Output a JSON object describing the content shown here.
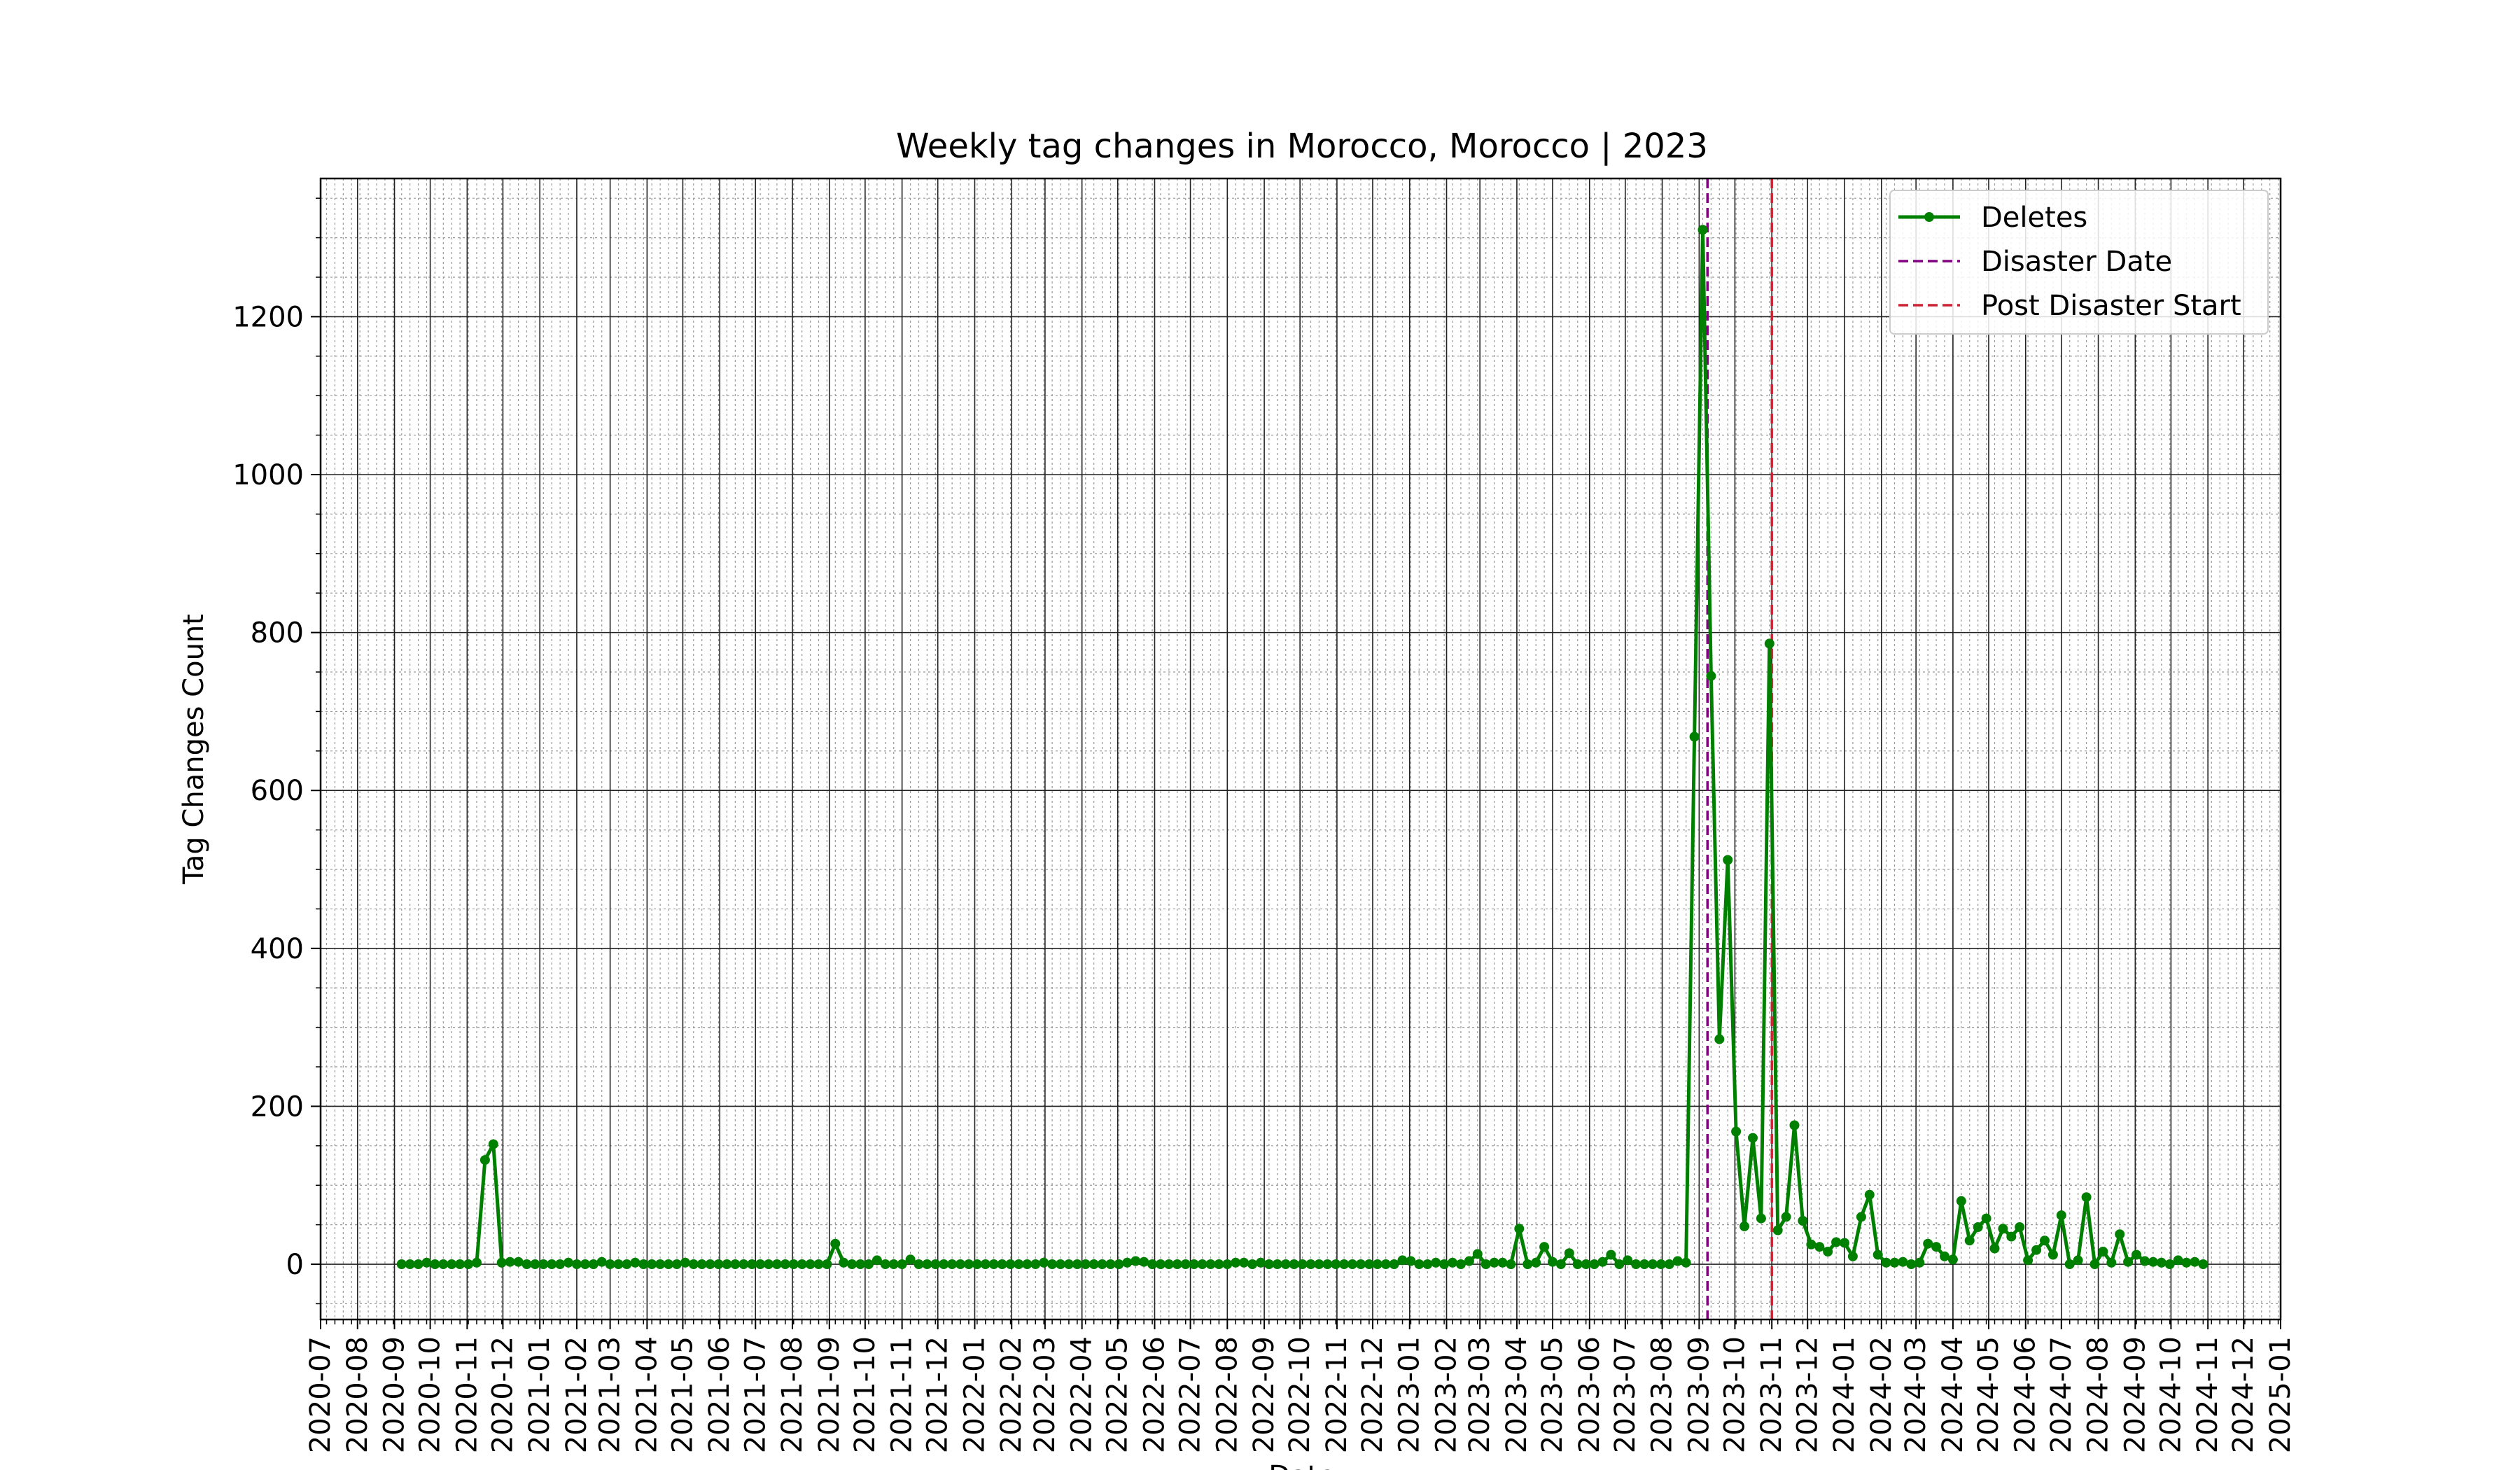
{
  "chart_data": {
    "type": "line",
    "title": "Weekly tag changes in Morocco, Morocco | 2023",
    "xlabel": "Date",
    "ylabel": "Tag Changes Count",
    "xlim": [
      "2020-07-01",
      "2025-01-01"
    ],
    "ylim": [
      -70,
      1375
    ],
    "yticks": [
      0,
      200,
      400,
      600,
      800,
      1000,
      1200
    ],
    "xticks": [
      "2020-07",
      "2020-08",
      "2020-09",
      "2020-10",
      "2020-11",
      "2020-12",
      "2021-01",
      "2021-02",
      "2021-03",
      "2021-04",
      "2021-05",
      "2021-06",
      "2021-07",
      "2021-08",
      "2021-09",
      "2021-10",
      "2021-11",
      "2021-12",
      "2022-01",
      "2022-02",
      "2022-03",
      "2022-04",
      "2022-05",
      "2022-06",
      "2022-07",
      "2022-08",
      "2022-09",
      "2022-10",
      "2022-11",
      "2022-12",
      "2023-01",
      "2023-02",
      "2023-03",
      "2023-04",
      "2023-05",
      "2023-06",
      "2023-07",
      "2023-08",
      "2023-09",
      "2023-10",
      "2023-11",
      "2023-12",
      "2024-01",
      "2024-02",
      "2024-03",
      "2024-04",
      "2024-05",
      "2024-06",
      "2024-07",
      "2024-08",
      "2024-09",
      "2024-10",
      "2024-11",
      "2024-12",
      "2025-01"
    ],
    "grid": true,
    "legend_position": "top-right",
    "series": [
      {
        "name": "Deletes",
        "color": "#008000",
        "marker": "circle",
        "points": [
          [
            "2020-09-07",
            0
          ],
          [
            "2020-09-14",
            0
          ],
          [
            "2020-09-21",
            0
          ],
          [
            "2020-09-28",
            2
          ],
          [
            "2020-10-05",
            0
          ],
          [
            "2020-10-12",
            0
          ],
          [
            "2020-10-19",
            0
          ],
          [
            "2020-10-26",
            0
          ],
          [
            "2020-11-02",
            0
          ],
          [
            "2020-11-09",
            2
          ],
          [
            "2020-11-16",
            132
          ],
          [
            "2020-11-23",
            152
          ],
          [
            "2020-11-30",
            2
          ],
          [
            "2020-12-07",
            3
          ],
          [
            "2020-12-14",
            3
          ],
          [
            "2020-12-21",
            0
          ],
          [
            "2020-12-28",
            0
          ],
          [
            "2021-01-04",
            0
          ],
          [
            "2021-01-11",
            0
          ],
          [
            "2021-01-18",
            0
          ],
          [
            "2021-01-25",
            2
          ],
          [
            "2021-02-01",
            0
          ],
          [
            "2021-02-08",
            0
          ],
          [
            "2021-02-15",
            0
          ],
          [
            "2021-02-22",
            3
          ],
          [
            "2021-03-01",
            0
          ],
          [
            "2021-03-08",
            0
          ],
          [
            "2021-03-15",
            0
          ],
          [
            "2021-03-22",
            2
          ],
          [
            "2021-03-29",
            0
          ],
          [
            "2021-04-05",
            0
          ],
          [
            "2021-04-12",
            0
          ],
          [
            "2021-04-19",
            0
          ],
          [
            "2021-04-26",
            0
          ],
          [
            "2021-05-03",
            2
          ],
          [
            "2021-05-10",
            0
          ],
          [
            "2021-05-17",
            0
          ],
          [
            "2021-05-24",
            0
          ],
          [
            "2021-05-31",
            0
          ],
          [
            "2021-06-07",
            0
          ],
          [
            "2021-06-14",
            0
          ],
          [
            "2021-06-21",
            0
          ],
          [
            "2021-06-28",
            0
          ],
          [
            "2021-07-05",
            0
          ],
          [
            "2021-07-12",
            0
          ],
          [
            "2021-07-19",
            0
          ],
          [
            "2021-07-26",
            0
          ],
          [
            "2021-08-02",
            0
          ],
          [
            "2021-08-09",
            0
          ],
          [
            "2021-08-16",
            0
          ],
          [
            "2021-08-23",
            0
          ],
          [
            "2021-08-30",
            0
          ],
          [
            "2021-09-06",
            26
          ],
          [
            "2021-09-13",
            2
          ],
          [
            "2021-09-20",
            0
          ],
          [
            "2021-09-27",
            0
          ],
          [
            "2021-10-04",
            0
          ],
          [
            "2021-10-11",
            5
          ],
          [
            "2021-10-18",
            0
          ],
          [
            "2021-10-25",
            0
          ],
          [
            "2021-11-01",
            0
          ],
          [
            "2021-11-08",
            6
          ],
          [
            "2021-11-15",
            0
          ],
          [
            "2021-11-22",
            0
          ],
          [
            "2021-11-29",
            0
          ],
          [
            "2021-12-06",
            0
          ],
          [
            "2021-12-13",
            0
          ],
          [
            "2021-12-20",
            0
          ],
          [
            "2021-12-27",
            0
          ],
          [
            "2022-01-03",
            0
          ],
          [
            "2022-01-10",
            0
          ],
          [
            "2022-01-17",
            0
          ],
          [
            "2022-01-24",
            0
          ],
          [
            "2022-01-31",
            0
          ],
          [
            "2022-02-07",
            0
          ],
          [
            "2022-02-14",
            0
          ],
          [
            "2022-02-21",
            0
          ],
          [
            "2022-02-28",
            2
          ],
          [
            "2022-03-07",
            0
          ],
          [
            "2022-03-14",
            0
          ],
          [
            "2022-03-21",
            0
          ],
          [
            "2022-03-28",
            0
          ],
          [
            "2022-04-04",
            0
          ],
          [
            "2022-04-11",
            0
          ],
          [
            "2022-04-18",
            0
          ],
          [
            "2022-04-25",
            0
          ],
          [
            "2022-05-02",
            0
          ],
          [
            "2022-05-09",
            2
          ],
          [
            "2022-05-16",
            4
          ],
          [
            "2022-05-23",
            3
          ],
          [
            "2022-05-30",
            0
          ],
          [
            "2022-06-06",
            0
          ],
          [
            "2022-06-13",
            0
          ],
          [
            "2022-06-20",
            0
          ],
          [
            "2022-06-27",
            0
          ],
          [
            "2022-07-04",
            0
          ],
          [
            "2022-07-11",
            0
          ],
          [
            "2022-07-18",
            0
          ],
          [
            "2022-07-25",
            0
          ],
          [
            "2022-08-01",
            0
          ],
          [
            "2022-08-08",
            2
          ],
          [
            "2022-08-15",
            2
          ],
          [
            "2022-08-22",
            0
          ],
          [
            "2022-08-29",
            2
          ],
          [
            "2022-09-05",
            0
          ],
          [
            "2022-09-12",
            0
          ],
          [
            "2022-09-19",
            0
          ],
          [
            "2022-09-26",
            0
          ],
          [
            "2022-10-03",
            0
          ],
          [
            "2022-10-10",
            0
          ],
          [
            "2022-10-17",
            0
          ],
          [
            "2022-10-24",
            0
          ],
          [
            "2022-10-31",
            0
          ],
          [
            "2022-11-07",
            0
          ],
          [
            "2022-11-14",
            0
          ],
          [
            "2022-11-21",
            0
          ],
          [
            "2022-11-28",
            0
          ],
          [
            "2022-12-05",
            0
          ],
          [
            "2022-12-12",
            0
          ],
          [
            "2022-12-19",
            0
          ],
          [
            "2022-12-26",
            5
          ],
          [
            "2023-01-02",
            4
          ],
          [
            "2023-01-09",
            0
          ],
          [
            "2023-01-16",
            0
          ],
          [
            "2023-01-23",
            2
          ],
          [
            "2023-01-30",
            0
          ],
          [
            "2023-02-06",
            2
          ],
          [
            "2023-02-13",
            0
          ],
          [
            "2023-02-20",
            4
          ],
          [
            "2023-02-27",
            13
          ],
          [
            "2023-03-06",
            0
          ],
          [
            "2023-03-13",
            2
          ],
          [
            "2023-03-20",
            2
          ],
          [
            "2023-03-27",
            0
          ],
          [
            "2023-04-03",
            45
          ],
          [
            "2023-04-10",
            0
          ],
          [
            "2023-04-17",
            2
          ],
          [
            "2023-04-24",
            22
          ],
          [
            "2023-05-01",
            3
          ],
          [
            "2023-05-08",
            0
          ],
          [
            "2023-05-15",
            14
          ],
          [
            "2023-05-22",
            0
          ],
          [
            "2023-05-29",
            0
          ],
          [
            "2023-06-05",
            0
          ],
          [
            "2023-06-12",
            3
          ],
          [
            "2023-06-19",
            12
          ],
          [
            "2023-06-26",
            0
          ],
          [
            "2023-07-03",
            5
          ],
          [
            "2023-07-10",
            0
          ],
          [
            "2023-07-17",
            0
          ],
          [
            "2023-07-24",
            0
          ],
          [
            "2023-07-31",
            0
          ],
          [
            "2023-08-07",
            0
          ],
          [
            "2023-08-14",
            4
          ],
          [
            "2023-08-21",
            2
          ],
          [
            "2023-08-28",
            668
          ],
          [
            "2023-09-04",
            1310
          ],
          [
            "2023-09-11",
            745
          ],
          [
            "2023-09-18",
            285
          ],
          [
            "2023-09-25",
            512
          ],
          [
            "2023-10-02",
            168
          ],
          [
            "2023-10-09",
            48
          ],
          [
            "2023-10-16",
            160
          ],
          [
            "2023-10-23",
            58
          ],
          [
            "2023-10-30",
            786
          ],
          [
            "2023-11-06",
            43
          ],
          [
            "2023-11-13",
            60
          ],
          [
            "2023-11-20",
            176
          ],
          [
            "2023-11-27",
            55
          ],
          [
            "2023-12-04",
            25
          ],
          [
            "2023-12-11",
            22
          ],
          [
            "2023-12-18",
            16
          ],
          [
            "2023-12-25",
            28
          ],
          [
            "2024-01-01",
            27
          ],
          [
            "2024-01-08",
            10
          ],
          [
            "2024-01-15",
            60
          ],
          [
            "2024-01-22",
            88
          ],
          [
            "2024-01-29",
            12
          ],
          [
            "2024-02-05",
            2
          ],
          [
            "2024-02-12",
            2
          ],
          [
            "2024-02-19",
            3
          ],
          [
            "2024-02-26",
            0
          ],
          [
            "2024-03-04",
            2
          ],
          [
            "2024-03-11",
            26
          ],
          [
            "2024-03-18",
            22
          ],
          [
            "2024-03-25",
            10
          ],
          [
            "2024-04-01",
            6
          ],
          [
            "2024-04-08",
            80
          ],
          [
            "2024-04-15",
            30
          ],
          [
            "2024-04-22",
            47
          ],
          [
            "2024-04-29",
            58
          ],
          [
            "2024-05-06",
            20
          ],
          [
            "2024-05-13",
            45
          ],
          [
            "2024-05-20",
            35
          ],
          [
            "2024-05-27",
            47
          ],
          [
            "2024-06-03",
            5
          ],
          [
            "2024-06-10",
            18
          ],
          [
            "2024-06-17",
            30
          ],
          [
            "2024-06-24",
            12
          ],
          [
            "2024-07-01",
            62
          ],
          [
            "2024-07-08",
            0
          ],
          [
            "2024-07-15",
            5
          ],
          [
            "2024-07-22",
            85
          ],
          [
            "2024-07-29",
            0
          ],
          [
            "2024-08-05",
            16
          ],
          [
            "2024-08-12",
            2
          ],
          [
            "2024-08-19",
            38
          ],
          [
            "2024-08-26",
            3
          ],
          [
            "2024-09-02",
            12
          ],
          [
            "2024-09-09",
            4
          ],
          [
            "2024-09-16",
            3
          ],
          [
            "2024-09-23",
            2
          ],
          [
            "2024-09-30",
            0
          ],
          [
            "2024-10-07",
            5
          ],
          [
            "2024-10-14",
            2
          ],
          [
            "2024-10-21",
            3
          ],
          [
            "2024-10-28",
            0
          ]
        ]
      }
    ],
    "reference_lines": [
      {
        "name": "Disaster Date",
        "date": "2023-09-08",
        "color": "#800080",
        "style": "dashed"
      },
      {
        "name": "Post Disaster Start",
        "date": "2023-11-01",
        "color": "#cc2233",
        "style": "dashed"
      }
    ]
  }
}
